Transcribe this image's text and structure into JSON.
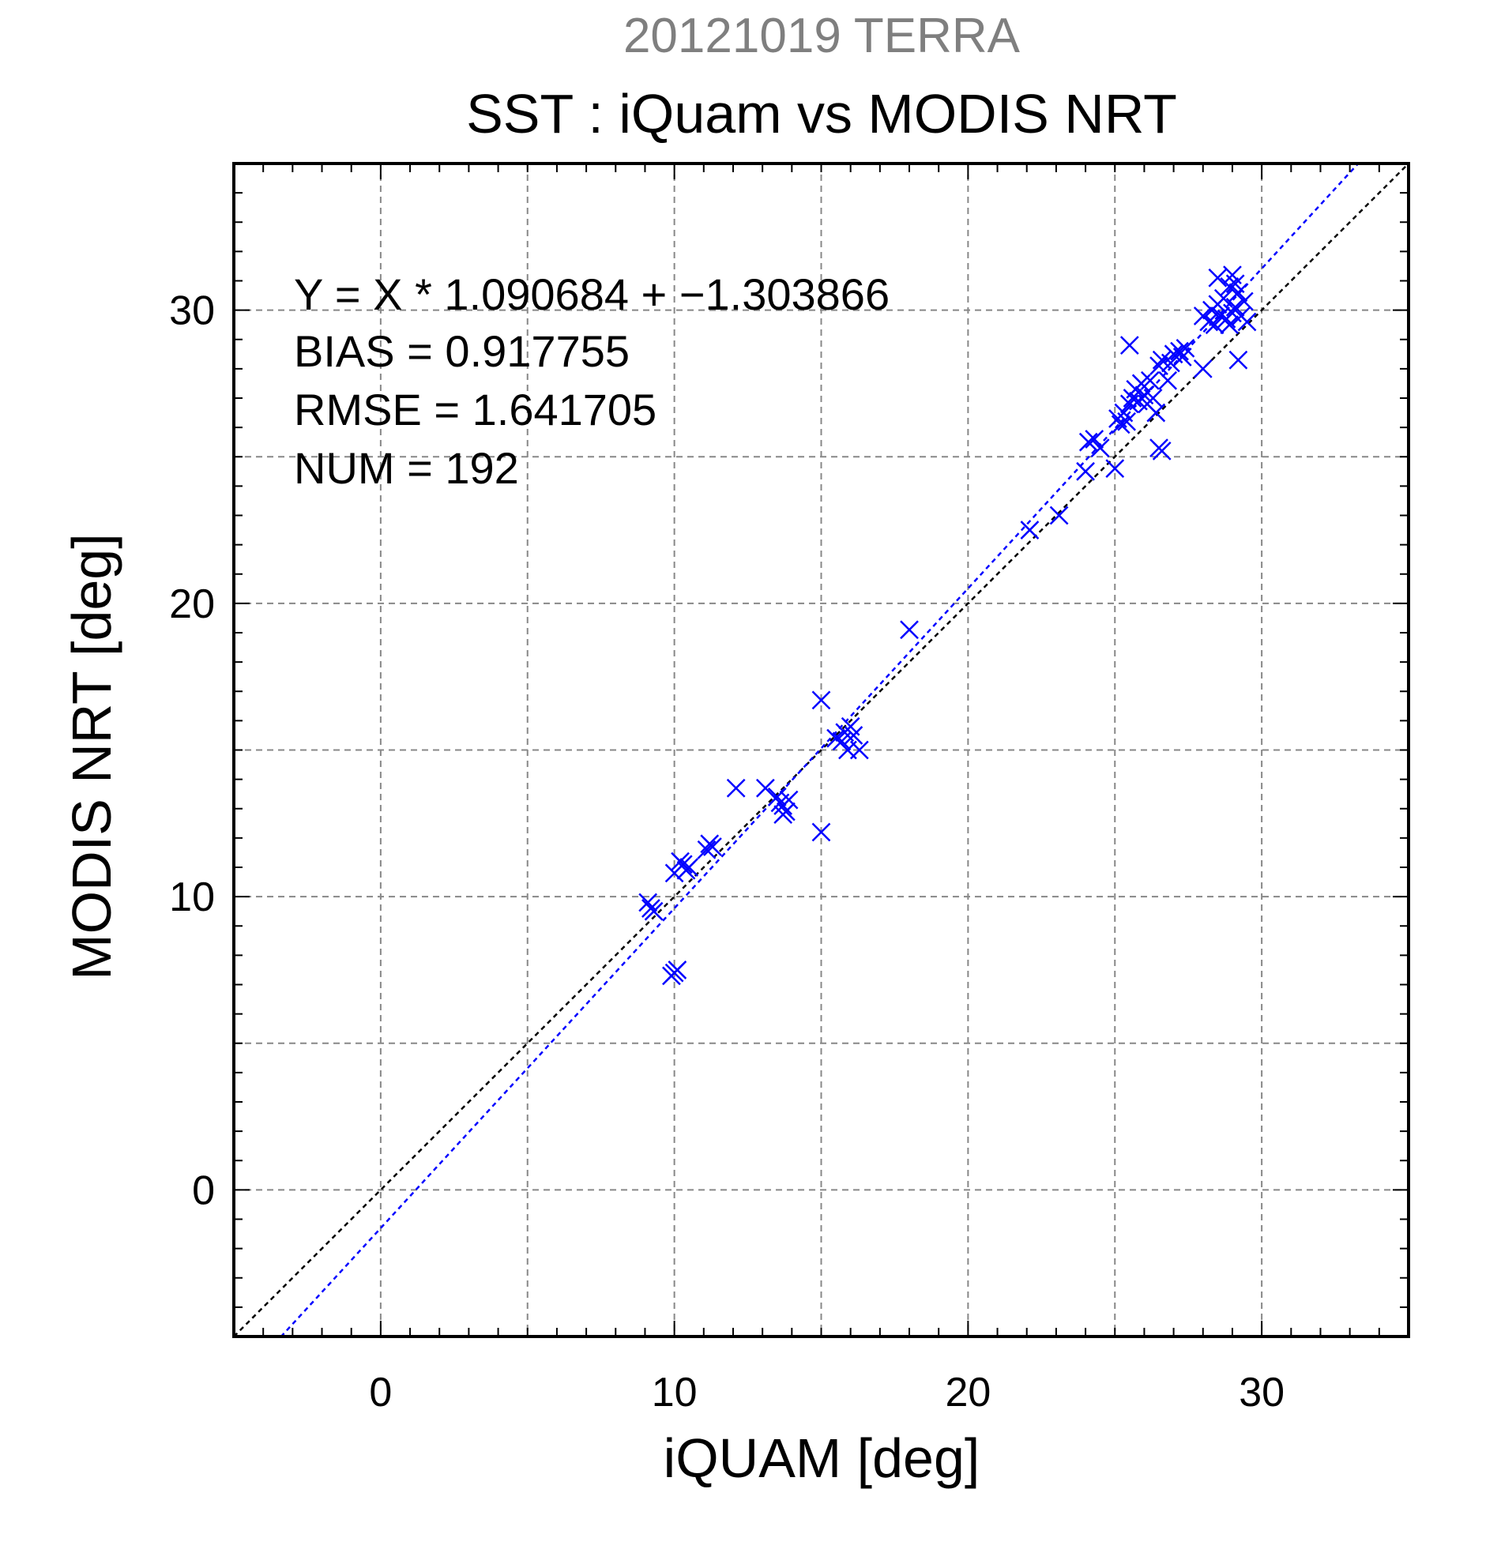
{
  "chart_data": {
    "type": "scatter",
    "supertitle": "20121019 TERRA",
    "title": "SST : iQuam vs MODIS NRT",
    "xlabel": "iQUAM [deg]",
    "ylabel": "MODIS NRT [deg]",
    "xlim": [
      -5,
      35
    ],
    "ylim": [
      -5,
      35
    ],
    "xticks": [
      0,
      10,
      20,
      30
    ],
    "yticks": [
      0,
      10,
      20,
      30
    ],
    "minor_step": 1,
    "grid": true,
    "grid_step": 5,
    "stats": [
      "Y = X * 1.090684 + −1.303866",
      "BIAS = 0.917755",
      "RMSE = 1.641705",
      "NUM = 192"
    ],
    "regression": {
      "slope": 1.090684,
      "intercept": -1.303866
    },
    "colors": {
      "points": "#0000ff",
      "fit_line": "#0000ff",
      "identity_line": "#000000",
      "grid": "#888888",
      "supertitle": "#7f7f7f"
    },
    "marker": "x",
    "points": [
      [
        9.1,
        9.8
      ],
      [
        9.2,
        9.6
      ],
      [
        9.3,
        9.5
      ],
      [
        10.0,
        7.4
      ],
      [
        10.1,
        7.5
      ],
      [
        9.9,
        7.3
      ],
      [
        10.0,
        10.8
      ],
      [
        10.3,
        11.1
      ],
      [
        10.4,
        10.9
      ],
      [
        10.5,
        11.0
      ],
      [
        10.2,
        11.2
      ],
      [
        11.2,
        11.8
      ],
      [
        11.3,
        11.7
      ],
      [
        11.1,
        11.6
      ],
      [
        12.1,
        13.7
      ],
      [
        13.1,
        13.7
      ],
      [
        13.6,
        13.2
      ],
      [
        13.7,
        13.1
      ],
      [
        13.8,
        12.9
      ],
      [
        13.7,
        12.8
      ],
      [
        13.9,
        13.3
      ],
      [
        13.5,
        13.4
      ],
      [
        15.0,
        16.7
      ],
      [
        15.0,
        12.2
      ],
      [
        15.5,
        15.4
      ],
      [
        15.7,
        15.3
      ],
      [
        15.8,
        15.6
      ],
      [
        15.9,
        15.0
      ],
      [
        16.0,
        15.8
      ],
      [
        16.1,
        15.5
      ],
      [
        16.3,
        15.0
      ],
      [
        18.0,
        19.1
      ],
      [
        22.1,
        22.5
      ],
      [
        23.1,
        23.0
      ],
      [
        24.0,
        24.5
      ],
      [
        24.1,
        25.5
      ],
      [
        24.3,
        25.6
      ],
      [
        24.5,
        25.3
      ],
      [
        25.0,
        24.6
      ],
      [
        25.1,
        26.3
      ],
      [
        25.2,
        26.1
      ],
      [
        25.3,
        26.5
      ],
      [
        25.4,
        26.2
      ],
      [
        25.5,
        26.8
      ],
      [
        25.5,
        28.8
      ],
      [
        25.6,
        27.0
      ],
      [
        25.7,
        27.3
      ],
      [
        25.8,
        26.9
      ],
      [
        25.9,
        27.5
      ],
      [
        26.0,
        27.1
      ],
      [
        26.1,
        26.8
      ],
      [
        26.2,
        27.6
      ],
      [
        26.3,
        27.0
      ],
      [
        26.4,
        26.5
      ],
      [
        26.5,
        25.3
      ],
      [
        26.6,
        25.2
      ],
      [
        26.5,
        28.1
      ],
      [
        26.6,
        28.3
      ],
      [
        26.8,
        27.6
      ],
      [
        26.9,
        28.2
      ],
      [
        27.0,
        28.5
      ],
      [
        27.2,
        28.6
      ],
      [
        27.3,
        28.4
      ],
      [
        27.4,
        28.7
      ],
      [
        28.0,
        29.8
      ],
      [
        28.0,
        28.0
      ],
      [
        28.2,
        29.6
      ],
      [
        28.3,
        30.0
      ],
      [
        28.4,
        29.5
      ],
      [
        28.5,
        30.2
      ],
      [
        28.5,
        31.1
      ],
      [
        28.6,
        29.8
      ],
      [
        28.7,
        30.4
      ],
      [
        28.8,
        29.7
      ],
      [
        28.9,
        30.8
      ],
      [
        29.0,
        29.9
      ],
      [
        29.0,
        31.2
      ],
      [
        29.1,
        30.1
      ],
      [
        29.2,
        30.6
      ],
      [
        29.2,
        28.3
      ],
      [
        29.3,
        29.8
      ],
      [
        29.4,
        30.3
      ],
      [
        29.5,
        29.6
      ],
      [
        28.9,
        29.5
      ],
      [
        29.1,
        30.9
      ]
    ]
  }
}
